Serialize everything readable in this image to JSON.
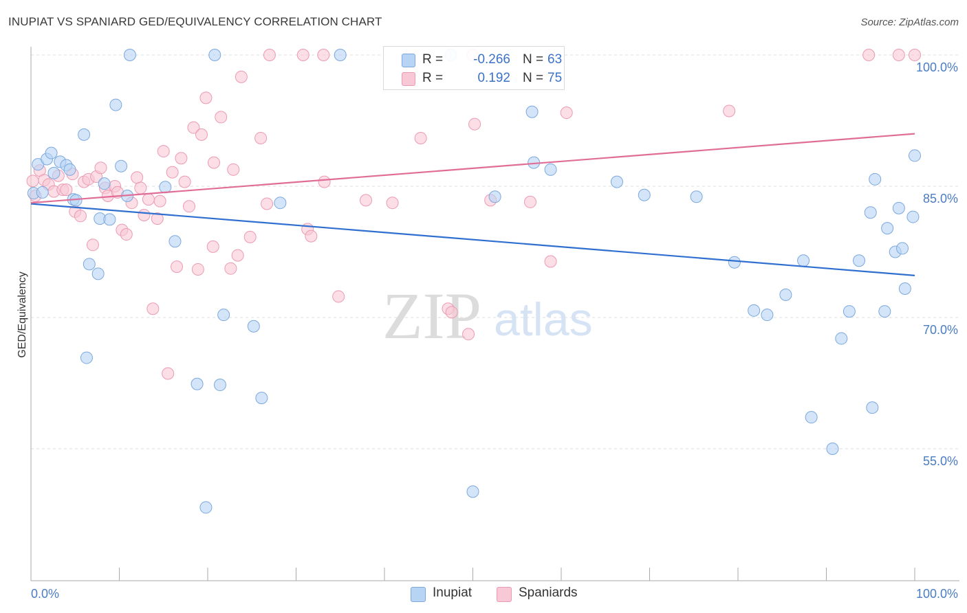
{
  "title": "INUPIAT VS SPANIARD GED/EQUIVALENCY CORRELATION CHART",
  "source": "Source: ZipAtlas.com",
  "watermark": {
    "zip": "ZIP",
    "atlas": "atlas"
  },
  "colors": {
    "inupiat_fill": "#b8d4f5",
    "inupiat_stroke": "#7aa8de",
    "inupiat_line": "#2f6fd0",
    "spaniards_fill": "#f9c8d6",
    "spaniards_stroke": "#ec9ab2",
    "spaniards_line": "#e06d96",
    "grid": "#dddddd",
    "axis_label": "#4a7cc4"
  },
  "legend": {
    "rows": [
      {
        "r_label": "R =",
        "r_value": "-0.266",
        "n_label": "N =",
        "n_value": "63"
      },
      {
        "r_label": "R =",
        "r_value": "0.192",
        "n_label": "N =",
        "n_value": "75"
      }
    ]
  },
  "bottom_legend": {
    "inupiat": "Inupiat",
    "spaniards": "Spaniards"
  },
  "chart_data": {
    "type": "scatter",
    "title": "INUPIAT VS SPANIARD GED/EQUIVALENCY CORRELATION CHART",
    "xlabel": "",
    "ylabel": "GED/Equivalency",
    "xlim": [
      0,
      100
    ],
    "ylim": [
      40,
      102
    ],
    "x_tick_labels": [
      "0.0%",
      "100.0%"
    ],
    "y_ticks": [
      55,
      70,
      85,
      100
    ],
    "y_tick_labels": [
      "55.0%",
      "70.0%",
      "85.0%",
      "100.0%"
    ],
    "grid": true,
    "legend_placement": "top-center",
    "series": [
      {
        "name": "Inupiat",
        "trend": {
          "x": [
            0,
            100
          ],
          "y": [
            83.0,
            74.8
          ]
        },
        "points": [
          [
            0.3,
            84.2
          ],
          [
            0.8,
            87.5
          ],
          [
            1.3,
            84.3
          ],
          [
            1.8,
            88.1
          ],
          [
            2.3,
            88.8
          ],
          [
            2.6,
            86.5
          ],
          [
            3.3,
            87.8
          ],
          [
            4.0,
            87.4
          ],
          [
            4.4,
            86.9
          ],
          [
            4.8,
            83.5
          ],
          [
            5.1,
            83.4
          ],
          [
            6.0,
            90.9
          ],
          [
            6.3,
            65.4
          ],
          [
            6.6,
            76.1
          ],
          [
            7.6,
            75.0
          ],
          [
            7.8,
            81.3
          ],
          [
            8.3,
            85.3
          ],
          [
            8.9,
            81.2
          ],
          [
            9.6,
            94.3
          ],
          [
            10.2,
            87.3
          ],
          [
            10.9,
            83.9
          ],
          [
            11.2,
            100.0
          ],
          [
            15.2,
            84.9
          ],
          [
            16.3,
            78.7
          ],
          [
            18.8,
            62.4
          ],
          [
            19.8,
            48.3
          ],
          [
            20.8,
            100.0
          ],
          [
            21.4,
            62.3
          ],
          [
            21.8,
            70.3
          ],
          [
            25.2,
            69.0
          ],
          [
            26.1,
            60.8
          ],
          [
            28.2,
            83.1
          ],
          [
            35.0,
            100.0
          ],
          [
            47.5,
            100.0
          ],
          [
            50.0,
            50.1
          ],
          [
            52.5,
            83.8
          ],
          [
            56.7,
            93.5
          ],
          [
            56.9,
            87.7
          ],
          [
            58.8,
            86.9
          ],
          [
            66.3,
            85.5
          ],
          [
            69.4,
            84.0
          ],
          [
            75.3,
            83.8
          ],
          [
            79.6,
            76.3
          ],
          [
            81.8,
            70.8
          ],
          [
            83.3,
            70.3
          ],
          [
            85.4,
            72.6
          ],
          [
            87.4,
            76.5
          ],
          [
            88.3,
            58.6
          ],
          [
            90.7,
            55.0
          ],
          [
            91.7,
            67.6
          ],
          [
            92.6,
            70.7
          ],
          [
            93.7,
            76.5
          ],
          [
            95.0,
            82.0
          ],
          [
            95.2,
            59.7
          ],
          [
            95.5,
            85.8
          ],
          [
            96.6,
            70.7
          ],
          [
            96.9,
            80.2
          ],
          [
            97.8,
            77.5
          ],
          [
            98.2,
            82.5
          ],
          [
            98.6,
            77.9
          ],
          [
            98.9,
            73.3
          ],
          [
            99.8,
            81.5
          ],
          [
            100.0,
            88.5
          ]
        ]
      },
      {
        "name": "Spaniards",
        "trend": {
          "x": [
            0,
            100
          ],
          "y": [
            83.1,
            91.0
          ]
        },
        "points": [
          [
            0.2,
            85.6
          ],
          [
            0.5,
            83.9
          ],
          [
            1.0,
            86.8
          ],
          [
            1.5,
            85.7
          ],
          [
            2.0,
            85.2
          ],
          [
            2.6,
            84.4
          ],
          [
            3.1,
            86.2
          ],
          [
            3.6,
            84.6
          ],
          [
            4.0,
            84.6
          ],
          [
            4.7,
            86.4
          ],
          [
            5.0,
            82.1
          ],
          [
            5.6,
            81.6
          ],
          [
            6.0,
            85.5
          ],
          [
            6.5,
            85.8
          ],
          [
            7.0,
            78.3
          ],
          [
            7.4,
            86.1
          ],
          [
            7.9,
            87.1
          ],
          [
            8.4,
            84.8
          ],
          [
            8.7,
            83.9
          ],
          [
            9.5,
            85.0
          ],
          [
            9.8,
            84.3
          ],
          [
            10.3,
            80.0
          ],
          [
            10.8,
            79.5
          ],
          [
            11.4,
            83.1
          ],
          [
            12.0,
            86.0
          ],
          [
            12.4,
            84.8
          ],
          [
            12.8,
            81.7
          ],
          [
            13.3,
            83.5
          ],
          [
            13.8,
            71.0
          ],
          [
            14.3,
            81.3
          ],
          [
            14.6,
            83.3
          ],
          [
            15.0,
            89.0
          ],
          [
            15.5,
            63.6
          ],
          [
            16.0,
            86.6
          ],
          [
            16.5,
            75.8
          ],
          [
            17.0,
            88.2
          ],
          [
            17.4,
            85.5
          ],
          [
            17.9,
            82.7
          ],
          [
            18.4,
            91.7
          ],
          [
            18.9,
            75.5
          ],
          [
            19.3,
            90.9
          ],
          [
            19.8,
            95.1
          ],
          [
            20.6,
            78.1
          ],
          [
            20.7,
            87.7
          ],
          [
            21.5,
            92.9
          ],
          [
            22.6,
            75.6
          ],
          [
            22.9,
            86.9
          ],
          [
            23.4,
            77.1
          ],
          [
            23.8,
            97.5
          ],
          [
            24.8,
            79.2
          ],
          [
            26.0,
            90.5
          ],
          [
            26.7,
            83.0
          ],
          [
            27.0,
            100.0
          ],
          [
            30.8,
            100.0
          ],
          [
            31.3,
            80.1
          ],
          [
            31.7,
            79.3
          ],
          [
            33.1,
            100.0
          ],
          [
            33.2,
            85.5
          ],
          [
            34.8,
            72.4
          ],
          [
            37.9,
            83.4
          ],
          [
            40.9,
            83.1
          ],
          [
            44.1,
            90.5
          ],
          [
            47.2,
            71.0
          ],
          [
            47.6,
            70.6
          ],
          [
            49.5,
            68.1
          ],
          [
            50.0,
            100.0
          ],
          [
            50.2,
            92.1
          ],
          [
            52.0,
            83.4
          ],
          [
            56.5,
            83.2
          ],
          [
            58.8,
            76.4
          ],
          [
            60.6,
            93.4
          ],
          [
            79.0,
            93.6
          ],
          [
            94.8,
            100.0
          ],
          [
            98.2,
            100.0
          ],
          [
            100.0,
            100.0
          ]
        ]
      }
    ]
  }
}
